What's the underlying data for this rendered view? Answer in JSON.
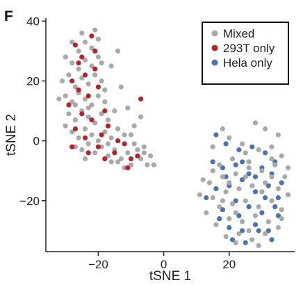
{
  "panel_label": "F",
  "chart_data": {
    "type": "scatter",
    "title": "",
    "xlabel": "tSNE 1",
    "ylabel": "tSNE 2",
    "xlim": [
      -36,
      40
    ],
    "ylim": [
      -37,
      41
    ],
    "xticks": [
      -20,
      0,
      20
    ],
    "yticks": [
      -20,
      0,
      20,
      40
    ],
    "xtick_labels": [
      "−20",
      "0",
      "20"
    ],
    "ytick_labels": [
      "−20",
      "0",
      "20",
      "40"
    ],
    "grid": false,
    "legend_position": "top-right",
    "series": [
      {
        "name": "Mixed",
        "color": "#a9a9a9",
        "points": [
          [
            -30,
            28
          ],
          [
            -28,
            26
          ],
          [
            -26,
            30
          ],
          [
            -24,
            27
          ],
          [
            -22,
            25
          ],
          [
            -20,
            28
          ],
          [
            -31,
            20
          ],
          [
            -29,
            22
          ],
          [
            -27,
            18
          ],
          [
            -25,
            21
          ],
          [
            -23,
            19
          ],
          [
            -21,
            22
          ],
          [
            -19,
            20
          ],
          [
            -30,
            15
          ],
          [
            -28,
            13
          ],
          [
            -26,
            16
          ],
          [
            -24,
            14
          ],
          [
            -22,
            12
          ],
          [
            -20,
            15
          ],
          [
            -18,
            13
          ],
          [
            -29,
            9
          ],
          [
            -27,
            7
          ],
          [
            -25,
            10
          ],
          [
            -23,
            8
          ],
          [
            -21,
            6
          ],
          [
            -19,
            9
          ],
          [
            -17,
            7
          ],
          [
            -28,
            3
          ],
          [
            -26,
            1
          ],
          [
            -24,
            4
          ],
          [
            -22,
            2
          ],
          [
            -20,
            0
          ],
          [
            -18,
            3
          ],
          [
            -16,
            1
          ],
          [
            -14,
            4
          ],
          [
            -12,
            2
          ],
          [
            -27,
            -2
          ],
          [
            -25,
            -3
          ],
          [
            -23,
            -1
          ],
          [
            -21,
            -4
          ],
          [
            -19,
            -2
          ],
          [
            -17,
            -5
          ],
          [
            -15,
            -3
          ],
          [
            -13,
            -6
          ],
          [
            -11,
            -4
          ],
          [
            -9,
            -1
          ],
          [
            -7,
            -6
          ],
          [
            -5,
            -8
          ],
          [
            -24,
            33
          ],
          [
            -20,
            34
          ],
          [
            -16,
            25
          ],
          [
            -14,
            30
          ],
          [
            -13,
            18
          ],
          [
            -11,
            11
          ],
          [
            -9,
            5
          ],
          [
            -7,
            8
          ],
          [
            -6,
            -2
          ],
          [
            -10,
            -8
          ],
          [
            -4,
            -5
          ],
          [
            -32,
            14
          ],
          [
            -26,
            24
          ],
          [
            -22,
            31
          ],
          [
            -18,
            17
          ],
          [
            -24,
            -6
          ],
          [
            -16,
            -7
          ],
          [
            -12,
            -9
          ],
          [
            -8,
            -3
          ],
          [
            -30,
            5
          ],
          [
            -27,
            12
          ],
          [
            -15,
            10
          ],
          [
            -19,
            26
          ],
          [
            -25,
            36
          ],
          [
            -21,
            37
          ],
          [
            -28,
            33
          ],
          [
            -23,
            11
          ],
          [
            -17,
            -1
          ],
          [
            -14,
            -7
          ],
          [
            -10,
            2
          ],
          [
            -6,
            -4
          ],
          [
            -3,
            -8
          ],
          [
            28,
            6
          ],
          [
            31,
            4
          ],
          [
            35,
            2
          ],
          [
            15,
            -10
          ],
          [
            17,
            -8
          ],
          [
            21,
            -6
          ],
          [
            25,
            -4
          ],
          [
            29,
            -3
          ],
          [
            33,
            -2
          ],
          [
            36,
            -5
          ],
          [
            14,
            -14
          ],
          [
            18,
            -12
          ],
          [
            22,
            -11
          ],
          [
            26,
            -9
          ],
          [
            30,
            -10
          ],
          [
            34,
            -8
          ],
          [
            37,
            -12
          ],
          [
            15,
            -19
          ],
          [
            19,
            -17
          ],
          [
            23,
            -16
          ],
          [
            27,
            -15
          ],
          [
            31,
            -14
          ],
          [
            35,
            -16
          ],
          [
            38,
            -18
          ],
          [
            13,
            -24
          ],
          [
            17,
            -22
          ],
          [
            21,
            -21
          ],
          [
            25,
            -20
          ],
          [
            29,
            -22
          ],
          [
            33,
            -20
          ],
          [
            36,
            -23
          ],
          [
            16,
            -28
          ],
          [
            20,
            -26
          ],
          [
            24,
            -27
          ],
          [
            28,
            -25
          ],
          [
            32,
            -27
          ],
          [
            35,
            -29
          ],
          [
            19,
            -32
          ],
          [
            23,
            -31
          ],
          [
            27,
            -33
          ],
          [
            31,
            -31
          ],
          [
            12,
            -13
          ],
          [
            11,
            -18
          ],
          [
            24,
            -1
          ],
          [
            20,
            1
          ],
          [
            18,
            4
          ],
          [
            26,
            -7
          ],
          [
            33,
            -6
          ],
          [
            30,
            -17
          ],
          [
            18,
            -20
          ],
          [
            22,
            -24
          ],
          [
            36,
            -26
          ],
          [
            26,
            -30
          ],
          [
            29,
            -35
          ],
          [
            22,
            -34
          ],
          [
            33,
            -12
          ],
          [
            15,
            -2
          ],
          [
            38,
            -9
          ],
          [
            20,
            -14
          ],
          [
            25,
            -12
          ]
        ]
      },
      {
        "name": "293T only",
        "color": "#b5232d",
        "points": [
          [
            -27,
            32
          ],
          [
            -25,
            28
          ],
          [
            -22,
            35
          ],
          [
            -24,
            22
          ],
          [
            -21,
            24
          ],
          [
            -26,
            17
          ],
          [
            -23,
            15
          ],
          [
            -29,
            12
          ],
          [
            -20,
            18
          ],
          [
            -25,
            9
          ],
          [
            -22,
            7
          ],
          [
            -18,
            10
          ],
          [
            -27,
            4
          ],
          [
            -24,
            1
          ],
          [
            -20,
            -2
          ],
          [
            -17,
            5
          ],
          [
            -15,
            -4
          ],
          [
            -12,
            -1
          ],
          [
            -10,
            -6
          ],
          [
            -8,
            -5
          ],
          [
            -28,
            -2
          ],
          [
            -23,
            -4
          ],
          [
            -19,
            2
          ],
          [
            -14,
            0
          ],
          [
            -7,
            14
          ],
          [
            -11,
            -9
          ],
          [
            -26,
            26
          ],
          [
            -21,
            30
          ],
          [
            -28,
            20
          ],
          [
            -18,
            -6
          ]
        ]
      },
      {
        "name": "Hela only",
        "color": "#4a74ad",
        "points": [
          [
            16,
            2
          ],
          [
            19,
            -1
          ],
          [
            23,
            -3
          ],
          [
            27,
            -2
          ],
          [
            31,
            -4
          ],
          [
            34,
            -7
          ],
          [
            15,
            -7
          ],
          [
            18,
            -9
          ],
          [
            22,
            -8
          ],
          [
            26,
            -11
          ],
          [
            30,
            -9
          ],
          [
            33,
            -11
          ],
          [
            36,
            -14
          ],
          [
            16,
            -16
          ],
          [
            20,
            -15
          ],
          [
            24,
            -13
          ],
          [
            28,
            -17
          ],
          [
            32,
            -15
          ],
          [
            35,
            -19
          ],
          [
            18,
            -23
          ],
          [
            22,
            -20
          ],
          [
            26,
            -22
          ],
          [
            30,
            -24
          ],
          [
            34,
            -22
          ],
          [
            20,
            -29
          ],
          [
            24,
            -30
          ],
          [
            28,
            -28
          ],
          [
            32,
            -30
          ],
          [
            35,
            -25
          ],
          [
            17,
            -26
          ],
          [
            21,
            -33
          ],
          [
            25,
            -34
          ],
          [
            29,
            -30
          ],
          [
            33,
            -33
          ],
          [
            13,
            -19
          ],
          [
            24,
            -7
          ],
          [
            28,
            -12
          ],
          [
            31,
            -19
          ],
          [
            23,
            -25
          ],
          [
            19,
            -12
          ]
        ]
      }
    ]
  }
}
